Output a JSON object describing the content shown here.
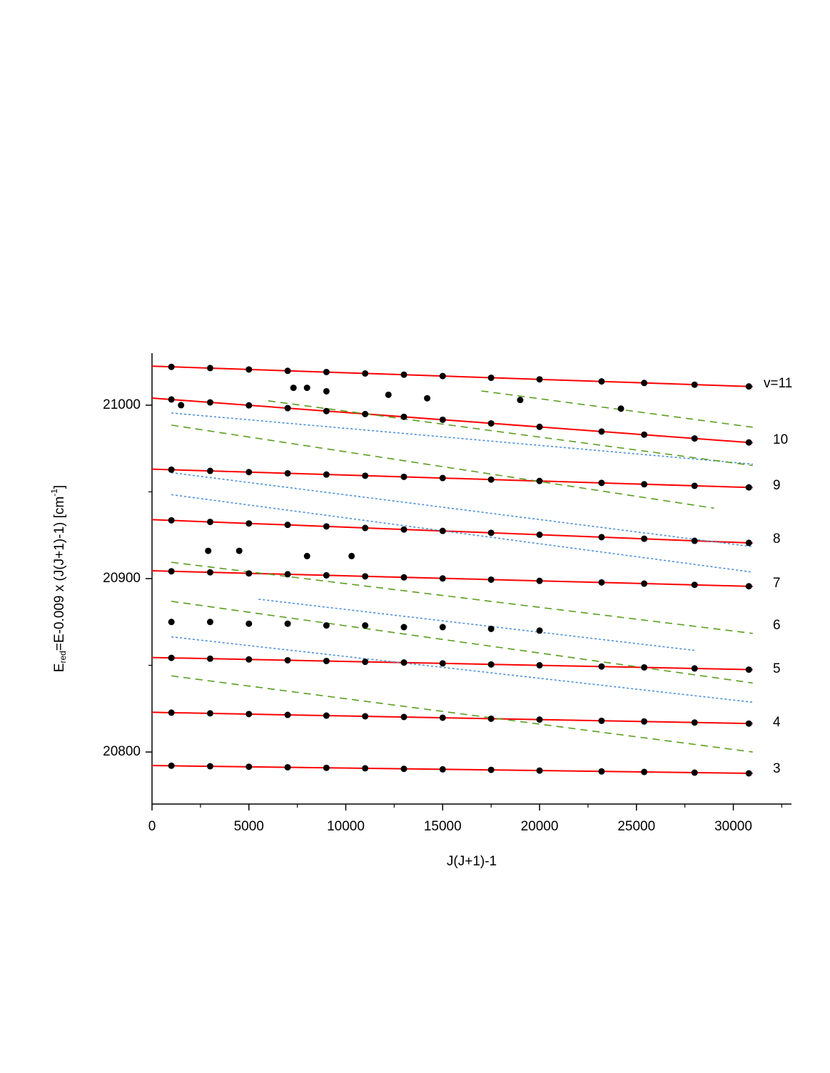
{
  "chart_data": {
    "type": "scatter",
    "xlabel": "J(J+1)-1",
    "ylabel": {
      "main": "E",
      "sub": "red",
      "mid": "=E-0.009 x (J(J+1)-1) [cm",
      "sup": "-1",
      "end": "]"
    },
    "xlim": [
      0,
      33000
    ],
    "ylim": [
      20770,
      21030
    ],
    "xticks": [
      0,
      5000,
      10000,
      15000,
      20000,
      25000,
      30000
    ],
    "yticks": [
      20800,
      20900,
      21000
    ],
    "xminorticks": [
      2500,
      7500,
      12500,
      17500,
      22500,
      27500,
      32500
    ],
    "yminorticks": [
      20850,
      20950
    ],
    "level_labels": [
      "v=11",
      "10",
      "9",
      "8",
      "7",
      "6",
      "5",
      "4",
      "3"
    ],
    "points": {
      "color": "#000000",
      "x": [
        1000,
        3000,
        5000,
        7000,
        9000,
        11000,
        13000,
        15000,
        17500,
        20000,
        23200,
        25400,
        28000,
        30800,
        1000,
        3000,
        5000,
        7000,
        9000,
        11000,
        13000,
        15000,
        17500,
        20000,
        23200,
        25400,
        28000,
        30800,
        1000,
        3000,
        5000,
        7000,
        9000,
        11000,
        13000,
        15000,
        17500,
        20000,
        23200,
        25400,
        28000,
        30800,
        1000,
        3000,
        5000,
        7000,
        9000,
        11000,
        13000,
        15000,
        17500,
        20000,
        23200,
        25400,
        28000,
        30800,
        1000,
        3000,
        5000,
        7000,
        9000,
        11000,
        13000,
        15000,
        17500,
        20000,
        23200,
        25400,
        28000,
        30800,
        1000,
        3000,
        5000,
        7000,
        9000,
        11000,
        13000,
        15000,
        17500,
        20000,
        23200,
        25400,
        28000,
        30800,
        1000,
        3000,
        5000,
        7000,
        9000,
        11000,
        13000,
        15000,
        17500,
        20000,
        23200,
        25400,
        28000,
        30800,
        1000,
        3000,
        5000,
        7000,
        9000,
        11000,
        13000,
        15000,
        17500,
        20000,
        23200,
        25400,
        28000,
        30800,
        1000,
        3000,
        5000,
        7000,
        9000,
        11000,
        13000,
        15000,
        17500,
        20000,
        7300,
        8000,
        9000,
        12200,
        14200,
        1500,
        19000,
        24200,
        8000,
        4500,
        2900,
        10300
      ],
      "values": [
        21022.1,
        21021.4,
        21020.6,
        21019.8,
        21019.1,
        21018.3,
        21017.6,
        21016.8,
        21015.8,
        21014.9,
        21013.7,
        21012.8,
        21011.8,
        21010.8,
        21003.3,
        21001.6,
        20999.9,
        20998.3,
        20996.6,
        20994.9,
        20993.3,
        20991.6,
        20989.5,
        20987.5,
        20984.8,
        20983.0,
        20980.8,
        20978.5,
        20962.8,
        20962.1,
        20961.4,
        20960.7,
        20960.0,
        20959.3,
        20958.7,
        20958.0,
        20957.1,
        20956.3,
        20955.2,
        20954.4,
        20953.5,
        20952.6,
        20933.6,
        20932.7,
        20931.8,
        20931.0,
        20930.1,
        20929.2,
        20928.3,
        20927.5,
        20926.4,
        20925.3,
        20923.9,
        20923.0,
        20921.8,
        20920.6,
        20904.2,
        20903.6,
        20903.0,
        20902.5,
        20901.9,
        20901.3,
        20900.7,
        20900.1,
        20899.4,
        20898.7,
        20897.8,
        20897.1,
        20896.4,
        20895.6,
        20854.3,
        20853.8,
        20853.4,
        20852.9,
        20852.5,
        20852.0,
        20851.6,
        20851.1,
        20850.5,
        20850.0,
        20849.3,
        20848.8,
        20848.2,
        20847.5,
        20822.7,
        20822.3,
        20821.9,
        20821.4,
        20821.0,
        20820.6,
        20820.2,
        20819.8,
        20819.2,
        20818.7,
        20818.0,
        20817.6,
        20817.0,
        20816.4,
        20792.1,
        20791.8,
        20791.5,
        20791.2,
        20790.9,
        20790.6,
        20790.3,
        20790.0,
        20789.7,
        20789.3,
        20788.8,
        20788.5,
        20788.1,
        20787.7,
        20875,
        20875,
        20874,
        20874,
        20873,
        20873,
        20872,
        20872,
        20871,
        20870,
        21010,
        21010,
        21008,
        21006,
        21004,
        21000,
        21003,
        20998,
        20913,
        20916,
        20916,
        20913
      ]
    },
    "lines": [
      {
        "color": "#ff0000",
        "style": "solid",
        "x": [
          0,
          31000
        ],
        "values": [
          21022.5,
          21010.7
        ]
      },
      {
        "color": "#ff0000",
        "style": "solid",
        "x": [
          0,
          31000
        ],
        "values": [
          21004.1,
          20978.3
        ]
      },
      {
        "color": "#ff0000",
        "style": "solid",
        "x": [
          0,
          31000
        ],
        "values": [
          20963.1,
          20952.5
        ]
      },
      {
        "color": "#ff0000",
        "style": "solid",
        "x": [
          0,
          31000
        ],
        "values": [
          20934.0,
          20920.5
        ]
      },
      {
        "color": "#ff0000",
        "style": "solid",
        "x": [
          0,
          31000
        ],
        "values": [
          20904.5,
          20895.5
        ]
      },
      {
        "color": "#ff0000",
        "style": "solid",
        "x": [
          0,
          31000
        ],
        "values": [
          20854.5,
          20847.5
        ]
      },
      {
        "color": "#ff0000",
        "style": "solid",
        "x": [
          0,
          31000
        ],
        "values": [
          20822.9,
          20816.4
        ]
      },
      {
        "color": "#ff0000",
        "style": "solid",
        "x": [
          0,
          31000
        ],
        "values": [
          20792.2,
          20787.7
        ]
      },
      {
        "color": "#4a90d9",
        "style": "dotted",
        "x": [
          1000,
          31000
        ],
        "values": [
          20995.5,
          20966.0
        ]
      },
      {
        "color": "#4a90d9",
        "style": "dotted",
        "x": [
          1000,
          31000
        ],
        "values": [
          20961.1,
          20918.4
        ]
      },
      {
        "color": "#4a90d9",
        "style": "dotted",
        "x": [
          1000,
          31000
        ],
        "values": [
          20948.4,
          20903.7
        ]
      },
      {
        "color": "#4a90d9",
        "style": "dotted",
        "x": [
          5500,
          28000
        ],
        "values": [
          20888.1,
          20858.6
        ]
      },
      {
        "color": "#4a90d9",
        "style": "dotted",
        "x": [
          1000,
          31000
        ],
        "values": [
          20866.4,
          20828.7
        ]
      },
      {
        "color": "#5a9e1e",
        "style": "dashed",
        "x": [
          6000,
          31000
        ],
        "values": [
          21002.5,
          20965.2
        ]
      },
      {
        "color": "#5a9e1e",
        "style": "dashed",
        "x": [
          17000,
          31000
        ],
        "values": [
          21008.2,
          20987.3
        ]
      },
      {
        "color": "#5a9e1e",
        "style": "dashed",
        "x": [
          1000,
          29000
        ],
        "values": [
          20988.5,
          20940.6
        ]
      },
      {
        "color": "#5a9e1e",
        "style": "dashed",
        "x": [
          1000,
          31000
        ],
        "values": [
          20909.4,
          20868.4
        ]
      },
      {
        "color": "#5a9e1e",
        "style": "dashed",
        "x": [
          1000,
          31000
        ],
        "values": [
          20886.9,
          20839.8
        ]
      },
      {
        "color": "#5a9e1e",
        "style": "dashed",
        "x": [
          1000,
          31000
        ],
        "values": [
          20843.9,
          20800.0
        ]
      }
    ]
  }
}
